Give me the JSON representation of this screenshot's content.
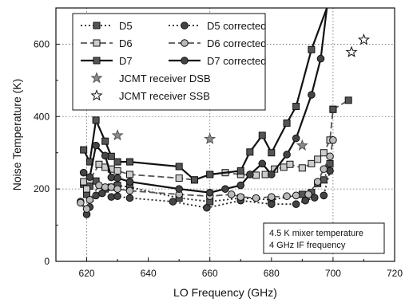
{
  "chart_data": {
    "type": "line",
    "title": "",
    "xlabel": "LO Frequency (GHz)",
    "ylabel": "Noise Temperature (K)",
    "xlim": [
      610,
      720
    ],
    "ylim": [
      0,
      700
    ],
    "xticks": [
      620,
      640,
      660,
      680,
      700,
      720
    ],
    "yticks": [
      0,
      200,
      400,
      600
    ],
    "grid": "dotted at 620, 660, 700 GHz and 200, 400, 600 K",
    "legend_placement": "top-left",
    "series": [
      {
        "name": "D5",
        "marker": "square",
        "filled": true,
        "line": "dotted",
        "color": "#222222",
        "points": [
          [
            619,
            213
          ],
          [
            620,
            185
          ],
          [
            621,
            208
          ],
          [
            623,
            222
          ],
          [
            626,
            200
          ],
          [
            628,
            205
          ],
          [
            630,
            210
          ],
          [
            634,
            205
          ],
          [
            650,
            175
          ],
          [
            660,
            165
          ],
          [
            670,
            175
          ],
          [
            680,
            170
          ],
          [
            690,
            185
          ],
          [
            693,
            190
          ],
          [
            695,
            215
          ],
          [
            697,
            225
          ],
          [
            699,
            270
          ]
        ]
      },
      {
        "name": "D5 corrected",
        "marker": "circle",
        "filled": true,
        "line": "dotted",
        "color": "#222222",
        "points": [
          [
            618,
            165
          ],
          [
            620,
            130
          ],
          [
            621,
            150
          ],
          [
            623,
            182
          ],
          [
            625,
            188
          ],
          [
            628,
            178
          ],
          [
            630,
            180
          ],
          [
            634,
            175
          ],
          [
            648,
            165
          ],
          [
            659,
            148
          ],
          [
            670,
            168
          ],
          [
            680,
            158
          ],
          [
            688,
            158
          ],
          [
            691,
            168
          ],
          [
            694,
            176
          ],
          [
            697,
            182
          ],
          [
            699,
            250
          ]
        ]
      },
      {
        "name": "D6",
        "marker": "square",
        "filled": false,
        "line": "dashed",
        "color": "#555555",
        "points": [
          [
            619,
            220
          ],
          [
            620,
            200
          ],
          [
            621,
            225
          ],
          [
            624,
            268
          ],
          [
            626,
            260
          ],
          [
            628,
            255
          ],
          [
            630,
            250
          ],
          [
            634,
            240
          ],
          [
            650,
            230
          ],
          [
            655,
            225
          ],
          [
            660,
            240
          ],
          [
            665,
            245
          ],
          [
            670,
            240
          ],
          [
            675,
            238
          ],
          [
            678,
            240
          ],
          [
            681,
            255
          ],
          [
            684,
            260
          ],
          [
            686,
            268
          ],
          [
            690,
            258
          ],
          [
            693,
            270
          ],
          [
            695,
            282
          ],
          [
            697,
            300
          ],
          [
            699,
            335
          ],
          [
            700,
            420
          ]
        ]
      },
      {
        "name": "D6 corrected",
        "marker": "circle",
        "filled": false,
        "line": "dashed",
        "color": "#555555",
        "points": [
          [
            618,
            162
          ],
          [
            620,
            145
          ],
          [
            621,
            170
          ],
          [
            624,
            210
          ],
          [
            626,
            205
          ],
          [
            628,
            205
          ],
          [
            630,
            200
          ],
          [
            634,
            195
          ],
          [
            650,
            185
          ],
          [
            660,
            180
          ],
          [
            667,
            185
          ],
          [
            670,
            178
          ],
          [
            675,
            175
          ],
          [
            680,
            178
          ],
          [
            685,
            180
          ],
          [
            688,
            182
          ],
          [
            692,
            185
          ],
          [
            695,
            220
          ],
          [
            697,
            255
          ],
          [
            699,
            290
          ],
          [
            700,
            335
          ]
        ]
      },
      {
        "name": "D7",
        "marker": "square",
        "filled": true,
        "line": "solid",
        "color": "#111111",
        "points": [
          [
            619,
            308
          ],
          [
            621,
            275
          ],
          [
            623,
            390
          ],
          [
            626,
            332
          ],
          [
            628,
            290
          ],
          [
            630,
            275
          ],
          [
            634,
            275
          ],
          [
            650,
            262
          ],
          [
            655,
            225
          ],
          [
            660,
            240
          ],
          [
            670,
            250
          ],
          [
            673,
            302
          ],
          [
            677,
            348
          ],
          [
            680,
            300
          ],
          [
            685,
            382
          ],
          [
            688,
            428
          ],
          [
            693,
            585
          ],
          [
            698,
            700
          ]
        ]
      },
      {
        "name": "D7 corrected",
        "marker": "circle",
        "filled": true,
        "line": "solid",
        "color": "#111111",
        "points": [
          [
            619,
            245
          ],
          [
            621,
            233
          ],
          [
            623,
            320
          ],
          [
            626,
            292
          ],
          [
            628,
            232
          ],
          [
            630,
            230
          ],
          [
            634,
            220
          ],
          [
            650,
            200
          ],
          [
            660,
            190
          ],
          [
            665,
            200
          ],
          [
            670,
            210
          ],
          [
            673,
            240
          ],
          [
            677,
            270
          ],
          [
            680,
            240
          ],
          [
            685,
            295
          ],
          [
            688,
            340
          ],
          [
            693,
            460
          ],
          [
            696,
            560
          ],
          [
            698,
            700
          ]
        ]
      },
      {
        "name": "JCMT receiver DSB",
        "marker": "star",
        "filled": true,
        "line": "none",
        "color": "#888888",
        "points": [
          [
            630,
            348
          ],
          [
            660,
            338
          ],
          [
            690,
            320
          ]
        ]
      },
      {
        "name": "JCMT receiver SSB",
        "marker": "star",
        "filled": false,
        "line": "none",
        "color": "#333333",
        "points": [
          [
            706,
            578
          ],
          [
            710,
            612
          ]
        ]
      },
      {
        "name": "",
        "marker": "square",
        "filled": true,
        "line": "dashed",
        "color": "#555555",
        "points": [
          [
            700,
            420
          ],
          [
            705,
            445
          ]
        ]
      }
    ],
    "annotations": [
      "4.5 K mixer temperature",
      "4 GHz IF frequency"
    ]
  }
}
